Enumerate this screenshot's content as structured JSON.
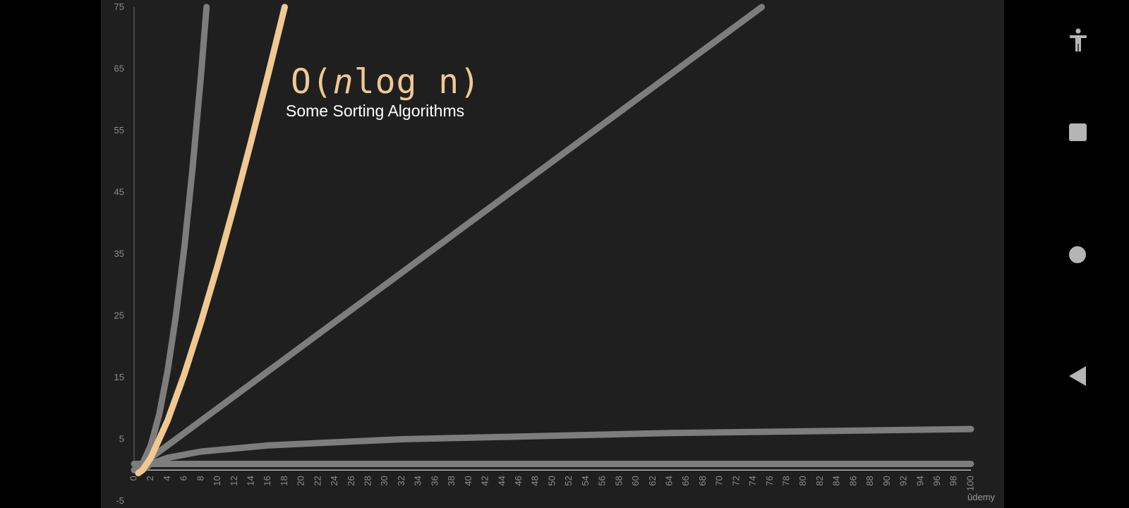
{
  "slide": {
    "title_prefix": "O(",
    "title_var": "n",
    "title_suffix": "log n)",
    "subtitle": "Some Sorting Algorithms",
    "watermark": "ûdemy"
  },
  "chart_data": {
    "type": "line",
    "title": "O(nlog n)",
    "subtitle": "Some Sorting Algorithms",
    "xlabel": "",
    "ylabel": "",
    "xlim": [
      0,
      100
    ],
    "ylim": [
      -5,
      75
    ],
    "x_ticks": [
      0,
      2,
      4,
      6,
      8,
      10,
      12,
      14,
      16,
      18,
      20,
      22,
      24,
      26,
      28,
      30,
      32,
      34,
      36,
      38,
      40,
      42,
      44,
      46,
      48,
      50,
      52,
      54,
      56,
      58,
      60,
      62,
      64,
      66,
      68,
      70,
      72,
      74,
      76,
      78,
      80,
      82,
      84,
      86,
      88,
      90,
      92,
      94,
      96,
      98,
      100
    ],
    "y_ticks": [
      75,
      65,
      55,
      45,
      35,
      25,
      15,
      5,
      -5
    ],
    "grid": false,
    "colors": {
      "highlight": "#f0c892",
      "muted": "#7d7d7d",
      "background": "#1f1f1f"
    },
    "series": [
      {
        "function": "n^2",
        "highlighted": false,
        "x": [
          0,
          1,
          2,
          3,
          4,
          5,
          6,
          7,
          8,
          8.66
        ],
        "y": [
          0,
          1,
          4,
          9,
          16,
          25,
          36,
          49,
          64,
          75
        ]
      },
      {
        "function": "n log2 n",
        "highlighted": true,
        "x": [
          0.5,
          1,
          2,
          4,
          6,
          8,
          10,
          12,
          14,
          16,
          18
        ],
        "y": [
          -0.5,
          0,
          2,
          8,
          15.5,
          24,
          33.2,
          43,
          53.3,
          64,
          75
        ]
      },
      {
        "function": "n",
        "highlighted": false,
        "x": [
          0,
          20,
          40,
          60,
          75
        ],
        "y": [
          0,
          20,
          40,
          60,
          75
        ]
      },
      {
        "function": "log2 n",
        "highlighted": false,
        "x": [
          1,
          2,
          4,
          8,
          16,
          32,
          64,
          100
        ],
        "y": [
          0,
          1,
          2,
          3,
          4,
          5,
          6,
          6.64
        ]
      },
      {
        "function": "1",
        "highlighted": false,
        "x": [
          0,
          100
        ],
        "y": [
          1,
          1
        ]
      }
    ]
  },
  "navbar": {
    "accessibility": "accessibility-icon",
    "recents": "square-icon",
    "home": "circle-icon",
    "back": "triangle-back-icon",
    "icon_color": "#b5b5b5"
  }
}
